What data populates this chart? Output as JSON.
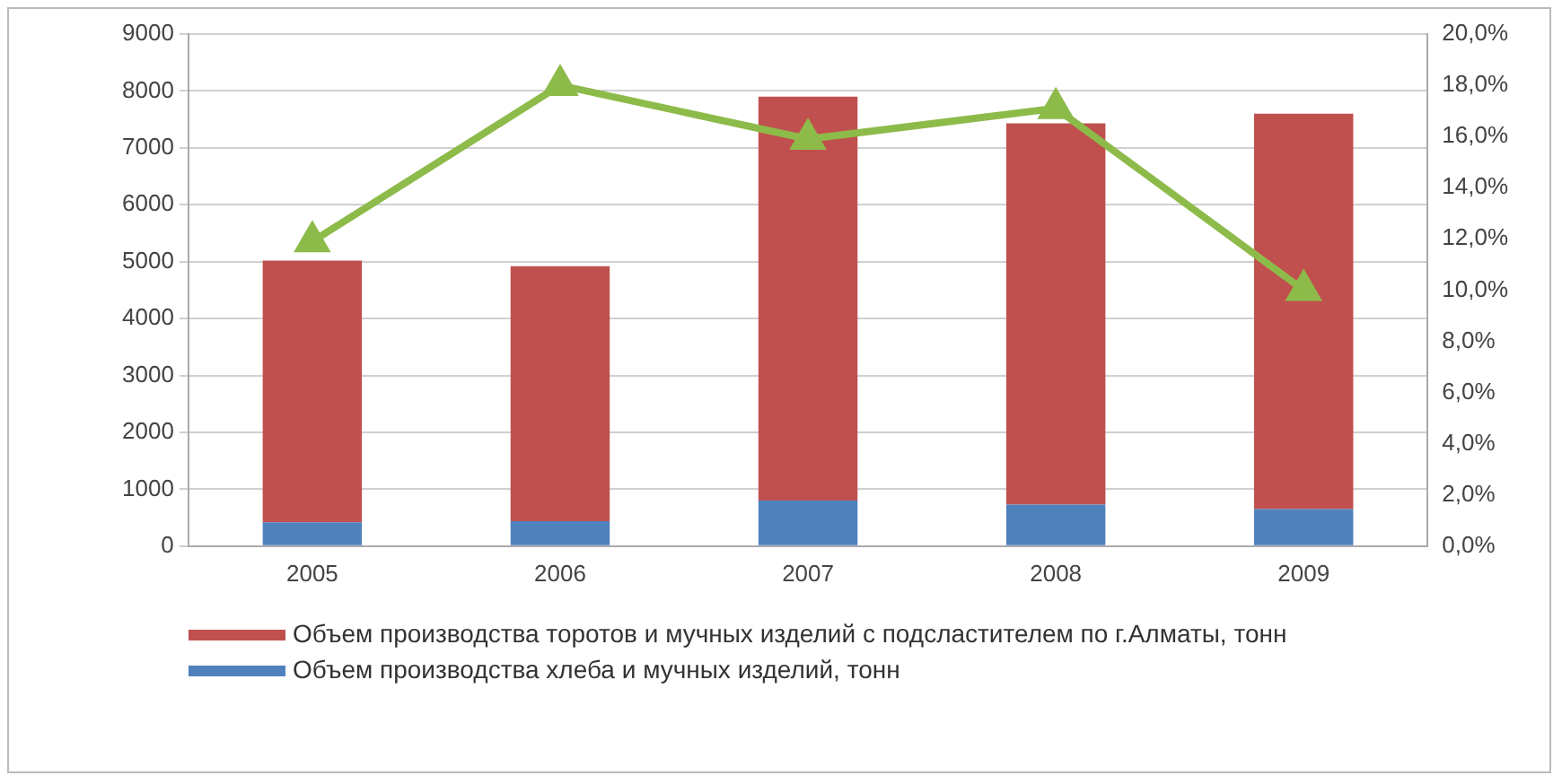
{
  "chart_data": {
    "type": "bar",
    "stacked": true,
    "categories": [
      "2005",
      "2006",
      "2007",
      "2008",
      "2009"
    ],
    "series": [
      {
        "name": "Объем производства хлеба и мучных изделий, тонн",
        "color": "#4f81bd",
        "values": [
          420,
          440,
          800,
          730,
          650
        ]
      },
      {
        "name": "Объем производства торотов и мучных изделий с подсластителем по г.Алматы, тонн",
        "color": "#c0504d",
        "values": [
          4600,
          4480,
          7100,
          6700,
          6950
        ]
      },
      {
        "type": "line",
        "axis": "y2",
        "color": "#8dbb4a",
        "marker": "triangle",
        "values": [
          11.9,
          18.0,
          15.9,
          17.1,
          10.0
        ]
      }
    ],
    "ylim": [
      0,
      9000
    ],
    "yticks": [
      0,
      1000,
      2000,
      3000,
      4000,
      5000,
      6000,
      7000,
      8000,
      9000
    ],
    "y2lim": [
      0,
      20
    ],
    "y2ticks": [
      {
        "value": 0,
        "label": "0,0%"
      },
      {
        "value": 2,
        "label": "2,0%"
      },
      {
        "value": 4,
        "label": "4,0%"
      },
      {
        "value": 6,
        "label": "6,0%"
      },
      {
        "value": 8,
        "label": "8,0%"
      },
      {
        "value": 10,
        "label": "10,0%"
      },
      {
        "value": 12,
        "label": "12,0%"
      },
      {
        "value": 14,
        "label": "14,0%"
      },
      {
        "value": 16,
        "label": "16,0%"
      },
      {
        "value": 18,
        "label": "18,0%"
      },
      {
        "value": 20,
        "label": "20,0%"
      }
    ],
    "grid": "y",
    "legend": "bottom"
  }
}
